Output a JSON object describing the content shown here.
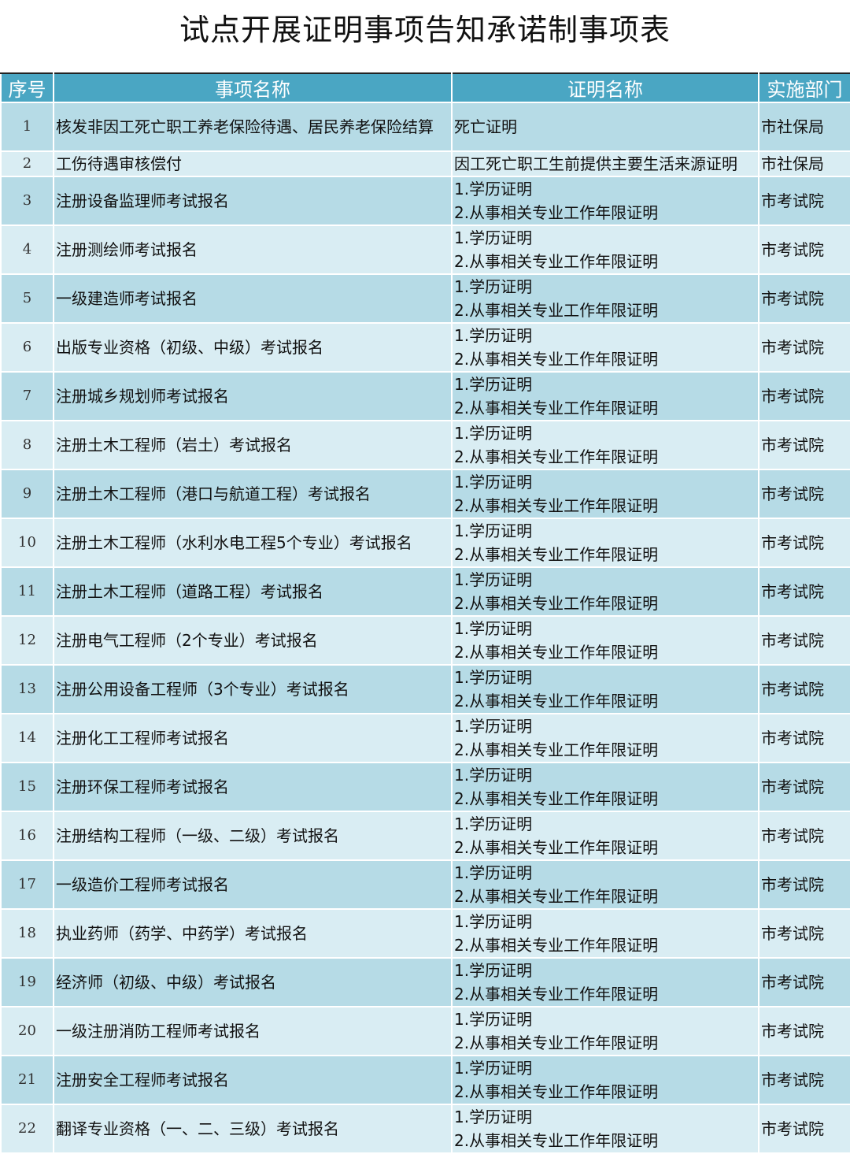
{
  "title": "试点开展证明事项告知承诺制事项表",
  "colors": {
    "header": "#4aa6c3",
    "row_dark": "#b6dbe6",
    "row_light": "#d9edf3"
  },
  "columns": [
    "序号",
    "事项名称",
    "证明名称",
    "实施部门"
  ],
  "rows": [
    {
      "no": "1",
      "item": "核发非因工死亡职工养老保险待遇、居民养老保险结算",
      "proofs": [
        "死亡证明"
      ],
      "dept": "市社保局"
    },
    {
      "no": "2",
      "item": "工伤待遇审核偿付",
      "proofs": [
        "因工死亡职工生前提供主要生活来源证明"
      ],
      "dept": "市社保局"
    },
    {
      "no": "3",
      "item": "注册设备监理师考试报名",
      "proofs": [
        "1.学历证明",
        "2.从事相关专业工作年限证明"
      ],
      "dept": "市考试院"
    },
    {
      "no": "4",
      "item": "注册测绘师考试报名",
      "proofs": [
        "1.学历证明",
        "2.从事相关专业工作年限证明"
      ],
      "dept": "市考试院"
    },
    {
      "no": "5",
      "item": "一级建造师考试报名",
      "proofs": [
        "1.学历证明",
        "2.从事相关专业工作年限证明"
      ],
      "dept": "市考试院"
    },
    {
      "no": "6",
      "item": "出版专业资格（初级、中级）考试报名",
      "proofs": [
        "1.学历证明",
        "2.从事相关专业工作年限证明"
      ],
      "dept": "市考试院"
    },
    {
      "no": "7",
      "item": "注册城乡规划师考试报名",
      "proofs": [
        "1.学历证明",
        "2.从事相关专业工作年限证明"
      ],
      "dept": "市考试院"
    },
    {
      "no": "8",
      "item": "注册土木工程师（岩土）考试报名",
      "proofs": [
        "1.学历证明",
        "2.从事相关专业工作年限证明"
      ],
      "dept": "市考试院"
    },
    {
      "no": "9",
      "item": "注册土木工程师（港口与航道工程）考试报名",
      "proofs": [
        "1.学历证明",
        "2.从事相关专业工作年限证明"
      ],
      "dept": "市考试院"
    },
    {
      "no": "10",
      "item": "注册土木工程师（水利水电工程5个专业）考试报名",
      "proofs": [
        "1.学历证明",
        "2.从事相关专业工作年限证明"
      ],
      "dept": "市考试院"
    },
    {
      "no": "11",
      "item": "注册土木工程师（道路工程）考试报名",
      "proofs": [
        "1.学历证明",
        "2.从事相关专业工作年限证明"
      ],
      "dept": "市考试院"
    },
    {
      "no": "12",
      "item": "注册电气工程师（2个专业）考试报名",
      "proofs": [
        "1.学历证明",
        "2.从事相关专业工作年限证明"
      ],
      "dept": "市考试院"
    },
    {
      "no": "13",
      "item": "注册公用设备工程师（3个专业）考试报名",
      "proofs": [
        "1.学历证明",
        "2.从事相关专业工作年限证明"
      ],
      "dept": "市考试院"
    },
    {
      "no": "14",
      "item": "注册化工工程师考试报名",
      "proofs": [
        "1.学历证明",
        "2.从事相关专业工作年限证明"
      ],
      "dept": "市考试院"
    },
    {
      "no": "15",
      "item": "注册环保工程师考试报名",
      "proofs": [
        "1.学历证明",
        "2.从事相关专业工作年限证明"
      ],
      "dept": "市考试院"
    },
    {
      "no": "16",
      "item": "注册结构工程师（一级、二级）考试报名",
      "proofs": [
        "1.学历证明",
        "2.从事相关专业工作年限证明"
      ],
      "dept": "市考试院"
    },
    {
      "no": "17",
      "item": "一级造价工程师考试报名",
      "proofs": [
        "1.学历证明",
        "2.从事相关专业工作年限证明"
      ],
      "dept": "市考试院"
    },
    {
      "no": "18",
      "item": "执业药师（药学、中药学）考试报名",
      "proofs": [
        "1.学历证明",
        "2.从事相关专业工作年限证明"
      ],
      "dept": "市考试院"
    },
    {
      "no": "19",
      "item": "经济师（初级、中级）考试报名",
      "proofs": [
        "1.学历证明",
        "2.从事相关专业工作年限证明"
      ],
      "dept": "市考试院"
    },
    {
      "no": "20",
      "item": "一级注册消防工程师考试报名",
      "proofs": [
        "1.学历证明",
        "2.从事相关专业工作年限证明"
      ],
      "dept": "市考试院"
    },
    {
      "no": "21",
      "item": "注册安全工程师考试报名",
      "proofs": [
        "1.学历证明",
        "2.从事相关专业工作年限证明"
      ],
      "dept": "市考试院"
    },
    {
      "no": "22",
      "item": "翻译专业资格（一、二、三级）考试报名",
      "proofs": [
        "1.学历证明",
        "2.从事相关专业工作年限证明"
      ],
      "dept": "市考试院"
    }
  ]
}
